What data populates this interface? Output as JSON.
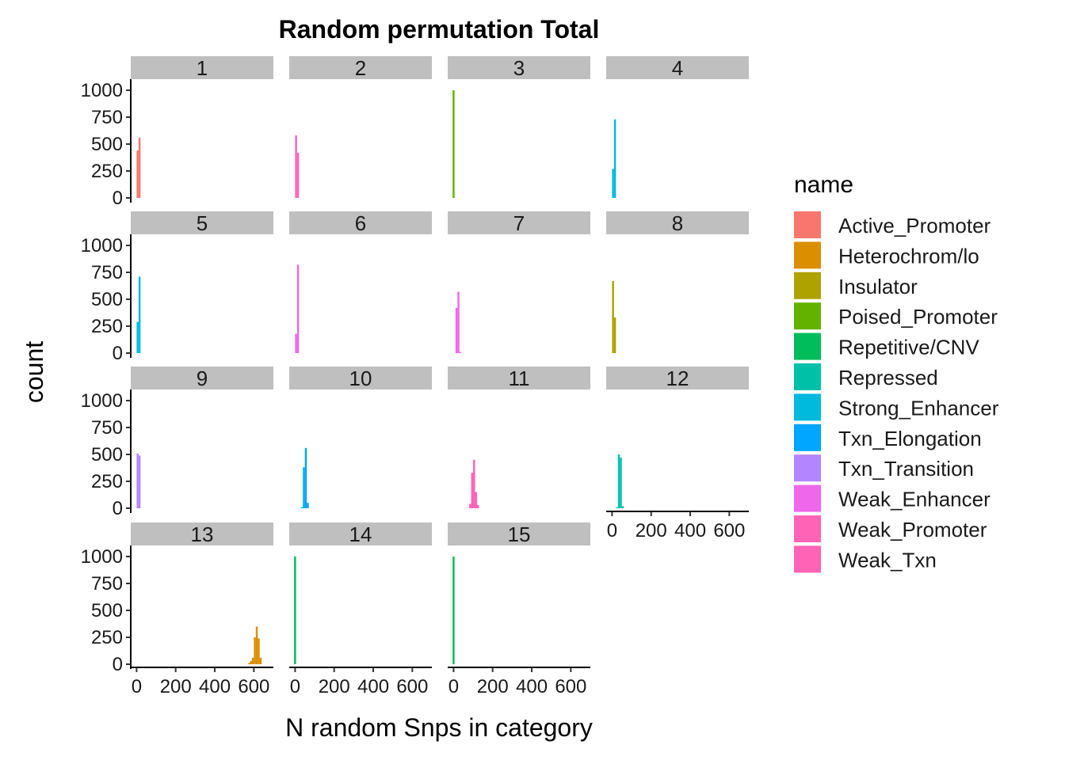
{
  "chart_data": {
    "type": "bar",
    "title": "Random permutation Total",
    "xlabel": "N random Snps in category",
    "ylabel": "count",
    "xlim": [
      -30,
      700
    ],
    "ylim": [
      0,
      1000
    ],
    "x_ticks": [
      0,
      200,
      400,
      600
    ],
    "y_ticks": [
      0,
      250,
      500,
      750,
      1000
    ],
    "grid": false,
    "legend": {
      "title": "name",
      "placement": "right",
      "entries": [
        {
          "name": "Active_Promoter",
          "color": "#F8766D"
        },
        {
          "name": "Heterochrom/lo",
          "color": "#DB8E00"
        },
        {
          "name": "Insulator",
          "color": "#AEA200"
        },
        {
          "name": "Poised_Promoter",
          "color": "#64B200"
        },
        {
          "name": "Repetitive/CNV",
          "color": "#00BD5C"
        },
        {
          "name": "Repressed",
          "color": "#00C1A7"
        },
        {
          "name": "Strong_Enhancer",
          "color": "#00BADE"
        },
        {
          "name": "Txn_Elongation",
          "color": "#00A6FF"
        },
        {
          "name": "Txn_Transition",
          "color": "#B385FF"
        },
        {
          "name": "Weak_Enhancer",
          "color": "#EF67EB"
        },
        {
          "name": "Weak_Promoter",
          "color": "#FF63B6"
        },
        {
          "name": "Weak_Txn",
          "color": "#FF63B6"
        }
      ]
    },
    "bin_width": 10,
    "panels": [
      {
        "label": "1",
        "series": "Active_Promoter",
        "bins": [
          {
            "x": 5,
            "count": 440
          },
          {
            "x": 15,
            "count": 560
          }
        ]
      },
      {
        "label": "2",
        "series": "Weak_Promoter",
        "bins": [
          {
            "x": 5,
            "count": 580
          },
          {
            "x": 15,
            "count": 420
          }
        ]
      },
      {
        "label": "3",
        "series": "Poised_Promoter",
        "bins": [
          {
            "x": 0,
            "count": 1000
          }
        ]
      },
      {
        "label": "4",
        "series": "Strong_Enhancer",
        "bins": [
          {
            "x": 5,
            "count": 270
          },
          {
            "x": 15,
            "count": 730
          }
        ]
      },
      {
        "label": "5",
        "series": "Strong_Enhancer",
        "bins": [
          {
            "x": 5,
            "count": 290
          },
          {
            "x": 15,
            "count": 710
          }
        ]
      },
      {
        "label": "6",
        "series": "Weak_Enhancer",
        "bins": [
          {
            "x": 5,
            "count": 180
          },
          {
            "x": 15,
            "count": 820
          }
        ]
      },
      {
        "label": "7",
        "series": "Weak_Enhancer",
        "bins": [
          {
            "x": 15,
            "count": 420
          },
          {
            "x": 25,
            "count": 570
          },
          {
            "x": 35,
            "count": 10
          }
        ]
      },
      {
        "label": "8",
        "series": "Insulator",
        "bins": [
          {
            "x": 5,
            "count": 670
          },
          {
            "x": 15,
            "count": 330
          }
        ]
      },
      {
        "label": "9",
        "series": "Txn_Transition",
        "bins": [
          {
            "x": 5,
            "count": 510
          },
          {
            "x": 15,
            "count": 490
          }
        ]
      },
      {
        "label": "10",
        "series": "Txn_Elongation",
        "bins": [
          {
            "x": 35,
            "count": 10
          },
          {
            "x": 45,
            "count": 380
          },
          {
            "x": 55,
            "count": 560
          },
          {
            "x": 65,
            "count": 50
          }
        ]
      },
      {
        "label": "11",
        "series": "Weak_Txn",
        "bins": [
          {
            "x": 85,
            "count": 40
          },
          {
            "x": 95,
            "count": 330
          },
          {
            "x": 105,
            "count": 450
          },
          {
            "x": 115,
            "count": 150
          },
          {
            "x": 125,
            "count": 30
          }
        ]
      },
      {
        "label": "12",
        "series": "Repressed",
        "bins": [
          {
            "x": 25,
            "count": 10
          },
          {
            "x": 35,
            "count": 500
          },
          {
            "x": 45,
            "count": 470
          },
          {
            "x": 55,
            "count": 20
          }
        ]
      },
      {
        "label": "13",
        "series": "Heterochrom/lo",
        "bins": [
          {
            "x": 575,
            "count": 10
          },
          {
            "x": 585,
            "count": 30
          },
          {
            "x": 595,
            "count": 60
          },
          {
            "x": 605,
            "count": 250
          },
          {
            "x": 615,
            "count": 350
          },
          {
            "x": 625,
            "count": 240
          },
          {
            "x": 635,
            "count": 60
          }
        ]
      },
      {
        "label": "14",
        "series": "Repetitive/CNV",
        "bins": [
          {
            "x": 0,
            "count": 1000
          }
        ]
      },
      {
        "label": "15",
        "series": "Repetitive/CNV",
        "bins": [
          {
            "x": 0,
            "count": 1000
          }
        ]
      }
    ]
  }
}
